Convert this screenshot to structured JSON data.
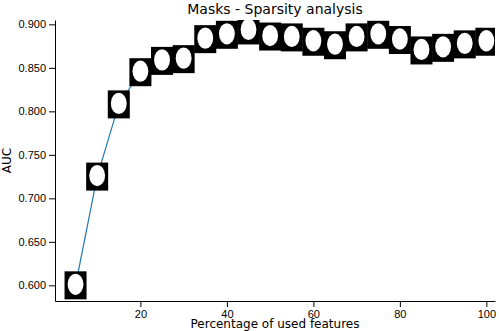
{
  "chart_data": {
    "type": "line",
    "title": "Masks - Sparsity analysis",
    "x_label": "Percentage of used features",
    "y_label": "AUC",
    "x": [
      5,
      10,
      15,
      20,
      25,
      30,
      35,
      40,
      45,
      50,
      55,
      60,
      65,
      70,
      75,
      80,
      85,
      90,
      95,
      100
    ],
    "series": [
      {
        "name": "AUC",
        "color": "#1f77b4",
        "marker": "square",
        "values": [
          0.6,
          0.725,
          0.808,
          0.845,
          0.858,
          0.86,
          0.883,
          0.888,
          0.893,
          0.886,
          0.885,
          0.88,
          0.876,
          0.885,
          0.888,
          0.882,
          0.87,
          0.873,
          0.877,
          0.88
        ]
      }
    ],
    "xlim": [
      0.25,
      102
    ],
    "ylim": [
      0.582,
      0.905
    ],
    "xticks": [
      20,
      40,
      60,
      80,
      100
    ],
    "yticks": [
      {
        "value": 0.6,
        "label": "0.600"
      },
      {
        "value": 0.65,
        "label": "0.650"
      },
      {
        "value": 0.7,
        "label": "0.700"
      },
      {
        "value": 0.75,
        "label": "0.750"
      },
      {
        "value": 0.8,
        "label": "0.800"
      },
      {
        "value": 0.85,
        "label": "0.850"
      },
      {
        "value": 0.9,
        "label": "0.900"
      }
    ]
  }
}
